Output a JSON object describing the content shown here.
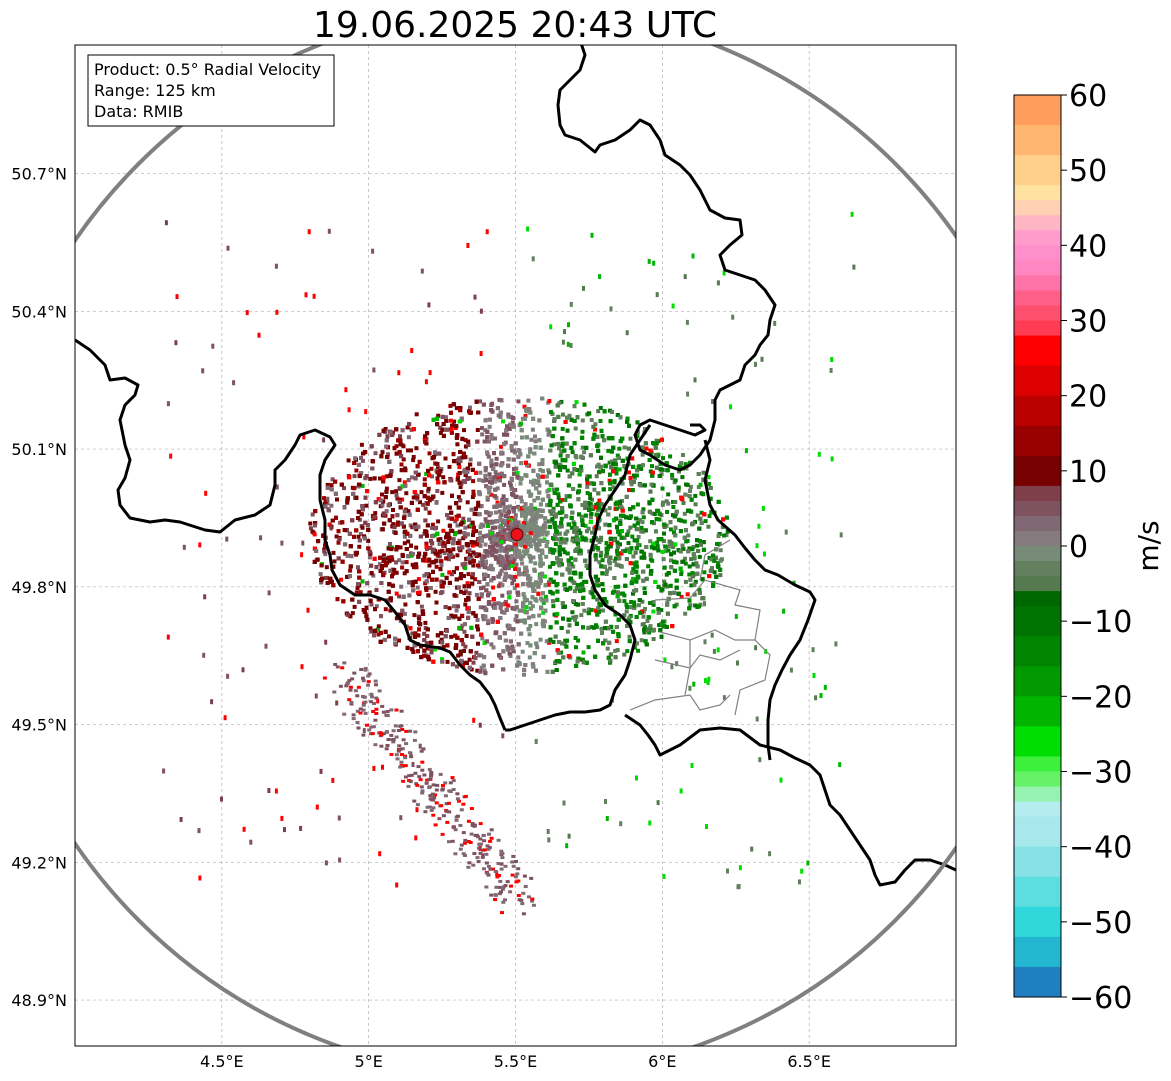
{
  "title": "19.06.2025 20:43 UTC",
  "info_box": {
    "product": "Product: 0.5° Radial Velocity",
    "range": "Range: 125 km",
    "data": "Data: RMIB"
  },
  "map": {
    "lon_range": [
      4.0,
      7.0
    ],
    "lat_range": [
      48.8,
      50.98
    ],
    "lon_ticks": [
      {
        "value": 4.5,
        "label": "4.5°E"
      },
      {
        "value": 5.0,
        "label": "5°E"
      },
      {
        "value": 5.5,
        "label": "5.5°E"
      },
      {
        "value": 6.0,
        "label": "6°E"
      },
      {
        "value": 6.5,
        "label": "6.5°E"
      }
    ],
    "lat_ticks": [
      {
        "value": 50.7,
        "label": "50.7°N"
      },
      {
        "value": 50.4,
        "label": "50.4°N"
      },
      {
        "value": 50.1,
        "label": "50.1°N"
      },
      {
        "value": 49.8,
        "label": "49.8°N"
      },
      {
        "value": 49.5,
        "label": "49.5°N"
      },
      {
        "value": 49.2,
        "label": "49.2°N"
      },
      {
        "value": 48.9,
        "label": "48.9°N"
      }
    ],
    "gridlines": true,
    "radar_site": {
      "lon": 5.505,
      "lat": 49.914
    },
    "range_ring_km": 125,
    "colors": {
      "border": "#000000",
      "subregion": "#808080",
      "ring": "#808080",
      "site": "#e8141c"
    }
  },
  "colorbar": {
    "label": "m/s",
    "min": -60,
    "max": 60,
    "ticks": [
      {
        "value": 60,
        "label": "60"
      },
      {
        "value": 50,
        "label": "50"
      },
      {
        "value": 40,
        "label": "40"
      },
      {
        "value": 30,
        "label": "30"
      },
      {
        "value": 20,
        "label": "20"
      },
      {
        "value": 10,
        "label": "10"
      },
      {
        "value": 0,
        "label": "0"
      },
      {
        "value": -10,
        "label": "−10"
      },
      {
        "value": -20,
        "label": "−20"
      },
      {
        "value": -30,
        "label": "−30"
      },
      {
        "value": -40,
        "label": "−40"
      },
      {
        "value": -50,
        "label": "−50"
      },
      {
        "value": -60,
        "label": "−60"
      }
    ],
    "stops": [
      {
        "from": 56,
        "to": 60,
        "color": "#ff9e5c"
      },
      {
        "from": 52,
        "to": 56,
        "color": "#ffb671"
      },
      {
        "from": 48,
        "to": 52,
        "color": "#ffd089"
      },
      {
        "from": 46,
        "to": 48,
        "color": "#ffe2a0"
      },
      {
        "from": 44,
        "to": 46,
        "color": "#ffd0b4"
      },
      {
        "from": 42,
        "to": 44,
        "color": "#ffb5c4"
      },
      {
        "from": 40,
        "to": 42,
        "color": "#ff9ccc"
      },
      {
        "from": 38,
        "to": 40,
        "color": "#ff8fcc"
      },
      {
        "from": 36,
        "to": 38,
        "color": "#ff86c0"
      },
      {
        "from": 34,
        "to": 36,
        "color": "#ff74a8"
      },
      {
        "from": 32,
        "to": 34,
        "color": "#ff5f88"
      },
      {
        "from": 30,
        "to": 32,
        "color": "#ff4f6e"
      },
      {
        "from": 28,
        "to": 30,
        "color": "#ff3c54"
      },
      {
        "from": 24,
        "to": 28,
        "color": "#ff0000"
      },
      {
        "from": 20,
        "to": 24,
        "color": "#dd0000"
      },
      {
        "from": 16,
        "to": 20,
        "color": "#bb0000"
      },
      {
        "from": 12,
        "to": 16,
        "color": "#990000"
      },
      {
        "from": 8,
        "to": 12,
        "color": "#770000"
      },
      {
        "from": 6,
        "to": 8,
        "color": "#7e3f4a"
      },
      {
        "from": 4,
        "to": 6,
        "color": "#7e525e"
      },
      {
        "from": 2,
        "to": 4,
        "color": "#806874"
      },
      {
        "from": 0,
        "to": 2,
        "color": "#857a7e"
      },
      {
        "from": -2,
        "to": 0,
        "color": "#788a78"
      },
      {
        "from": -4,
        "to": -2,
        "color": "#62805e"
      },
      {
        "from": -6,
        "to": -4,
        "color": "#557a50"
      },
      {
        "from": -8,
        "to": -6,
        "color": "#006800"
      },
      {
        "from": -12,
        "to": -8,
        "color": "#007300"
      },
      {
        "from": -16,
        "to": -12,
        "color": "#008500"
      },
      {
        "from": -20,
        "to": -16,
        "color": "#009900"
      },
      {
        "from": -24,
        "to": -20,
        "color": "#00b400"
      },
      {
        "from": -28,
        "to": -24,
        "color": "#00dd00"
      },
      {
        "from": -30,
        "to": -28,
        "color": "#3cf03c"
      },
      {
        "from": -32,
        "to": -30,
        "color": "#66f266"
      },
      {
        "from": -34,
        "to": -32,
        "color": "#96f2b0"
      },
      {
        "from": -36,
        "to": -34,
        "color": "#b4ecef"
      },
      {
        "from": -40,
        "to": -36,
        "color": "#a6e8ec"
      },
      {
        "from": -44,
        "to": -40,
        "color": "#86e2e6"
      },
      {
        "from": -48,
        "to": -44,
        "color": "#5cdde0"
      },
      {
        "from": -52,
        "to": -48,
        "color": "#30d8dc"
      },
      {
        "from": -56,
        "to": -52,
        "color": "#22b6d0"
      },
      {
        "from": -60,
        "to": -56,
        "color": "#1f7fc0"
      }
    ]
  }
}
